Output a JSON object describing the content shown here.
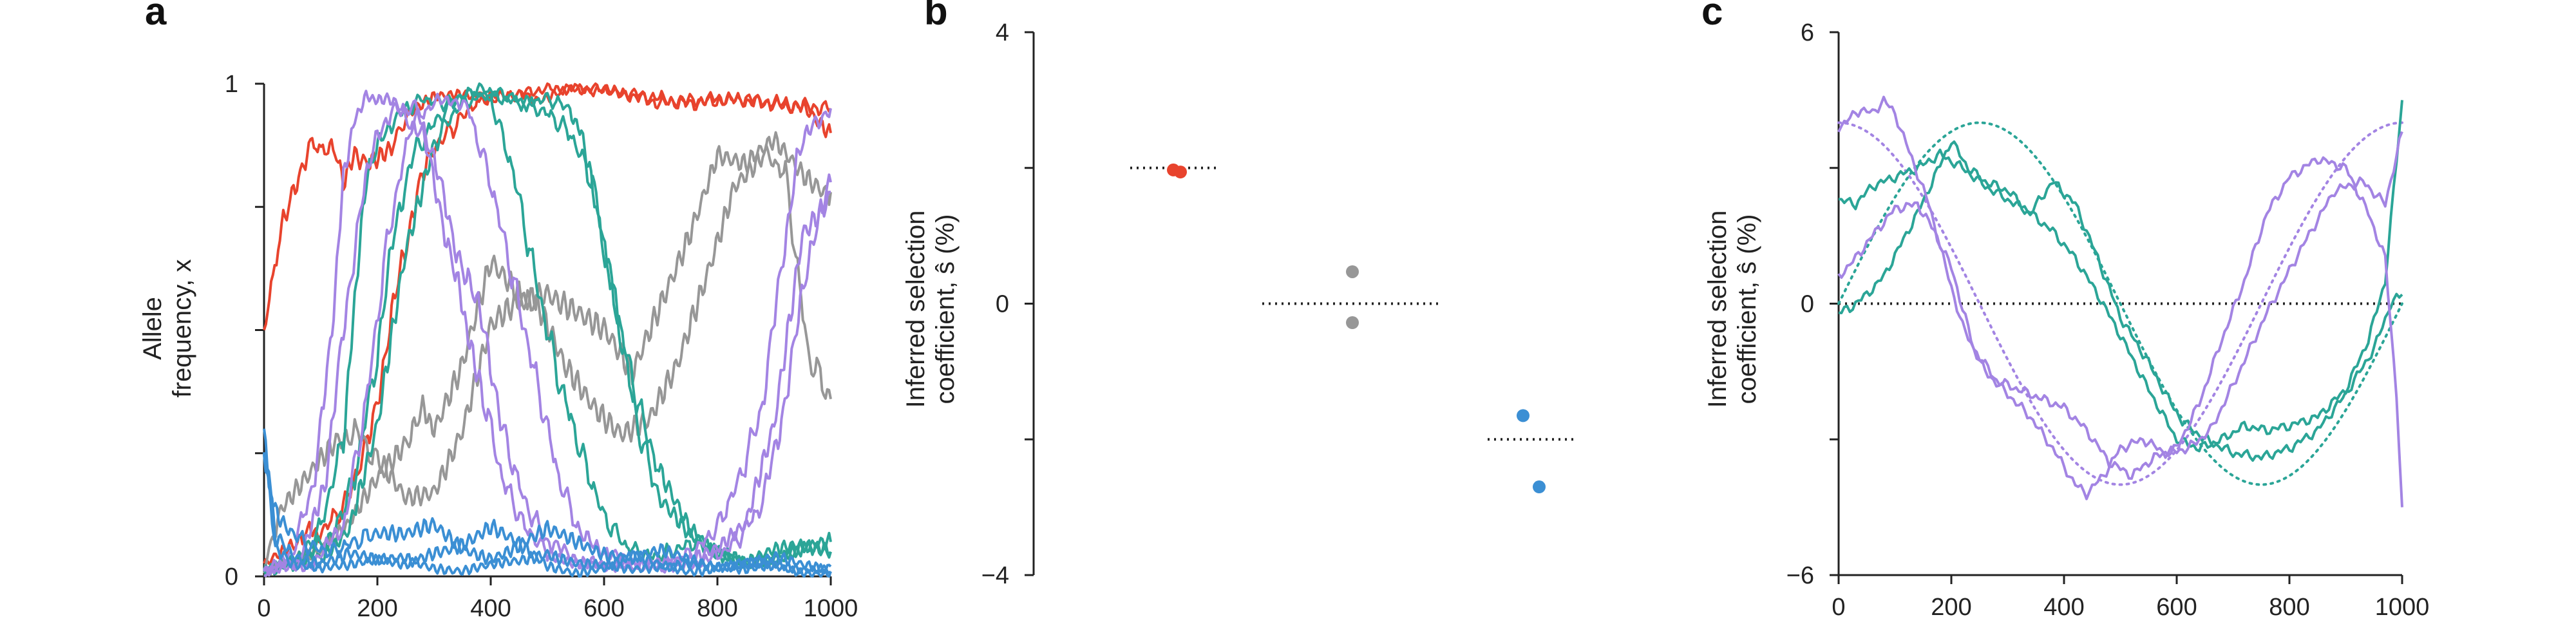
{
  "chart_data": [
    {
      "panel": "a",
      "type": "line",
      "title": "",
      "ylabel": [
        "Allele",
        "frequency, x"
      ],
      "xlabel": "",
      "xlim": [
        0,
        1000
      ],
      "ylim": [
        0,
        1
      ],
      "xticks": [
        "0",
        "200",
        "400",
        "600",
        "800",
        "1000"
      ],
      "yticks": [
        "0",
        "1"
      ],
      "series": [
        {
          "color": "#e8432d",
          "x": [
            0,
            25,
            55,
            85,
            110,
            125,
            140,
            160,
            190,
            225,
            250,
            300,
            350,
            400,
            500,
            600,
            700,
            800,
            900,
            1000
          ],
          "values": [
            0.5,
            0.67,
            0.8,
            0.88,
            0.86,
            0.87,
            0.81,
            0.86,
            0.84,
            0.87,
            0.93,
            0.97,
            0.98,
            0.97,
            0.99,
            0.99,
            0.96,
            0.97,
            0.96,
            0.95
          ]
        },
        {
          "color": "#e8432d",
          "x": [
            0,
            50,
            80,
            100,
            140,
            180,
            210,
            240,
            270,
            300,
            340,
            380,
            420,
            480,
            560,
            650,
            750,
            850,
            950,
            1000
          ],
          "values": [
            0.02,
            0.06,
            0.1,
            0.09,
            0.14,
            0.26,
            0.42,
            0.62,
            0.78,
            0.87,
            0.92,
            0.97,
            0.98,
            0.97,
            0.99,
            0.98,
            0.96,
            0.97,
            0.95,
            0.9
          ]
        },
        {
          "color": "#979797",
          "x": [
            0,
            30,
            80,
            130,
            160,
            200,
            250,
            300,
            350,
            400,
            450,
            500,
            550,
            600,
            650,
            700,
            750,
            800,
            850,
            900,
            950,
            1000
          ],
          "values": [
            0.02,
            0.14,
            0.2,
            0.27,
            0.3,
            0.23,
            0.16,
            0.18,
            0.3,
            0.5,
            0.55,
            0.58,
            0.55,
            0.5,
            0.4,
            0.55,
            0.7,
            0.86,
            0.83,
            0.88,
            0.82,
            0.78
          ]
        },
        {
          "color": "#979797",
          "x": [
            0,
            50,
            100,
            150,
            200,
            250,
            280,
            300,
            350,
            400,
            450,
            480,
            530,
            580,
            630,
            680,
            730,
            780,
            830,
            880,
            920,
            960,
            1000
          ],
          "values": [
            0.01,
            0.04,
            0.05,
            0.1,
            0.2,
            0.28,
            0.33,
            0.3,
            0.42,
            0.63,
            0.58,
            0.55,
            0.42,
            0.35,
            0.3,
            0.32,
            0.42,
            0.6,
            0.8,
            0.86,
            0.82,
            0.45,
            0.36
          ]
        },
        {
          "color": "#2ba597",
          "x": [
            0,
            60,
            100,
            140,
            160,
            180,
            210,
            240,
            280,
            320,
            360,
            400,
            440,
            480,
            520,
            560,
            600,
            640,
            680,
            720,
            760,
            800,
            850,
            900,
            950,
            1000
          ],
          "values": [
            0.01,
            0.03,
            0.1,
            0.28,
            0.55,
            0.8,
            0.9,
            0.94,
            0.97,
            0.96,
            0.98,
            0.97,
            0.82,
            0.6,
            0.4,
            0.25,
            0.12,
            0.06,
            0.04,
            0.05,
            0.07,
            0.05,
            0.03,
            0.04,
            0.06,
            0.05
          ]
        },
        {
          "color": "#2ba597",
          "x": [
            0,
            80,
            120,
            160,
            200,
            230,
            260,
            300,
            340,
            380,
            420,
            460,
            500,
            540,
            580,
            620,
            660,
            700,
            750,
            800,
            850,
            900,
            950,
            1000
          ],
          "values": [
            0.01,
            0.05,
            0.08,
            0.2,
            0.45,
            0.7,
            0.85,
            0.92,
            0.97,
            0.99,
            0.98,
            0.96,
            0.94,
            0.9,
            0.8,
            0.55,
            0.3,
            0.15,
            0.08,
            0.05,
            0.03,
            0.03,
            0.05,
            0.07
          ]
        },
        {
          "color": "#2ba597",
          "x": [
            0,
            100,
            150,
            200,
            250,
            300,
            340,
            380,
            420,
            460,
            500,
            540,
            560,
            580,
            620,
            660,
            700,
            750,
            800,
            850,
            900,
            950,
            1000
          ],
          "values": [
            0.01,
            0.04,
            0.1,
            0.3,
            0.65,
            0.88,
            0.95,
            0.98,
            0.97,
            0.96,
            0.97,
            0.95,
            0.9,
            0.78,
            0.55,
            0.35,
            0.2,
            0.1,
            0.05,
            0.03,
            0.05,
            0.06,
            0.05
          ]
        },
        {
          "color": "#a384e3",
          "x": [
            0,
            50,
            90,
            120,
            140,
            160,
            180,
            200,
            220,
            250,
            280,
            310,
            340,
            360,
            380,
            420,
            460,
            500,
            550,
            600,
            650,
            700,
            750,
            800,
            850,
            900,
            950,
            1000
          ],
          "values": [
            0.01,
            0.05,
            0.2,
            0.5,
            0.8,
            0.93,
            0.98,
            0.96,
            0.97,
            0.93,
            0.9,
            0.75,
            0.6,
            0.5,
            0.4,
            0.2,
            0.1,
            0.05,
            0.03,
            0.02,
            0.02,
            0.03,
            0.04,
            0.06,
            0.1,
            0.3,
            0.7,
            0.78
          ]
        },
        {
          "color": "#a384e3",
          "x": [
            0,
            60,
            110,
            140,
            170,
            200,
            230,
            270,
            300,
            330,
            360,
            390,
            420,
            460,
            500,
            560,
            620,
            680,
            720,
            760,
            800,
            840,
            880,
            910,
            940,
            970,
            1000
          ],
          "values": [
            0.01,
            0.03,
            0.2,
            0.5,
            0.75,
            0.9,
            0.95,
            0.95,
            0.85,
            0.7,
            0.6,
            0.5,
            0.3,
            0.15,
            0.07,
            0.03,
            0.02,
            0.02,
            0.03,
            0.05,
            0.1,
            0.2,
            0.35,
            0.6,
            0.85,
            0.92,
            0.95
          ]
        },
        {
          "color": "#a384e3",
          "x": [
            0,
            80,
            140,
            180,
            220,
            260,
            300,
            330,
            360,
            400,
            440,
            480,
            520,
            560,
            620,
            680,
            740,
            800,
            840,
            880,
            910,
            940,
            970,
            1000
          ],
          "values": [
            0.01,
            0.02,
            0.1,
            0.35,
            0.7,
            0.92,
            0.96,
            0.97,
            0.95,
            0.8,
            0.6,
            0.4,
            0.2,
            0.08,
            0.04,
            0.02,
            0.02,
            0.04,
            0.08,
            0.15,
            0.3,
            0.5,
            0.7,
            0.8
          ]
        },
        {
          "color": "#3b8fd4",
          "x": [
            0,
            20,
            40,
            80,
            120,
            160,
            200,
            250,
            300,
            350,
            400,
            450,
            500,
            550,
            600,
            650,
            700,
            750,
            800,
            850,
            900,
            950,
            1000
          ],
          "values": [
            0.25,
            0.14,
            0.1,
            0.06,
            0.05,
            0.07,
            0.09,
            0.08,
            0.1,
            0.06,
            0.04,
            0.06,
            0.09,
            0.07,
            0.05,
            0.04,
            0.05,
            0.03,
            0.02,
            0.03,
            0.04,
            0.02,
            0.01
          ]
        },
        {
          "color": "#3b8fd4",
          "x": [
            0,
            20,
            50,
            100,
            150,
            200,
            250,
            300,
            350,
            400,
            450,
            500,
            550,
            600,
            650,
            700,
            750,
            800,
            850,
            900,
            950,
            1000
          ],
          "values": [
            0.28,
            0.08,
            0.04,
            0.03,
            0.05,
            0.03,
            0.02,
            0.05,
            0.07,
            0.1,
            0.06,
            0.02,
            0.01,
            0.02,
            0.04,
            0.02,
            0.01,
            0.02,
            0.03,
            0.02,
            0.01,
            0.02
          ]
        },
        {
          "color": "#3b8fd4",
          "x": [
            0,
            20,
            50,
            100,
            150,
            200,
            250,
            300,
            350,
            400,
            450,
            500,
            550,
            600,
            650,
            700,
            750,
            800,
            850,
            900,
            950,
            1000
          ],
          "values": [
            0.26,
            0.05,
            0.03,
            0.02,
            0.02,
            0.03,
            0.04,
            0.02,
            0.01,
            0.02,
            0.03,
            0.05,
            0.03,
            0.02,
            0.01,
            0.02,
            0.03,
            0.02,
            0.01,
            0.02,
            0.01,
            0.01
          ]
        }
      ]
    },
    {
      "panel": "b",
      "type": "scatter",
      "title": "",
      "ylabel": [
        "Inferred selection",
        "coefficient, ŝ (%)"
      ],
      "ylim": [
        -4,
        4
      ],
      "yticks": [
        "4",
        "0",
        "−4"
      ],
      "true_values": [
        {
          "group": 1,
          "value": 2.0,
          "color": "#222222"
        },
        {
          "group": 2,
          "value": 0.0,
          "color": "#222222"
        },
        {
          "group": 3,
          "value": -2.0,
          "color": "#222222"
        }
      ],
      "points": [
        {
          "group": 1,
          "value": 1.97,
          "color": "#e8432d"
        },
        {
          "group": 1,
          "value": 1.94,
          "color": "#e8432d"
        },
        {
          "group": 2,
          "value": 0.47,
          "color": "#979797"
        },
        {
          "group": 2,
          "value": -0.28,
          "color": "#979797"
        },
        {
          "group": 3,
          "value": -1.65,
          "color": "#3b8fd4"
        },
        {
          "group": 3,
          "value": -2.7,
          "color": "#3b8fd4"
        }
      ]
    },
    {
      "panel": "c",
      "type": "line",
      "title": "",
      "ylabel": [
        "Inferred selection",
        "coefficient, ŝ (%)"
      ],
      "xlabel": "",
      "xlim": [
        0,
        1000
      ],
      "ylim": [
        -6,
        6
      ],
      "xticks": [
        "0",
        "200",
        "400",
        "600",
        "800",
        "1000"
      ],
      "yticks": [
        "6",
        "0",
        "−6"
      ],
      "zero_line": 0,
      "true_curves": [
        {
          "color": "#2ba597",
          "style": "dotted",
          "formula": "4*sin(2*pi*t/1000)",
          "amplitude": 4,
          "phase": "sin"
        },
        {
          "color": "#a384e3",
          "style": "dotted",
          "formula": "4*cos(2*pi*t/1000)",
          "amplitude": 4,
          "phase": "cos"
        }
      ],
      "series": [
        {
          "color": "#2ba597",
          "x": [
            0,
            20,
            50,
            80,
            110,
            140,
            170,
            200,
            230,
            260,
            300,
            340,
            380,
            420,
            460,
            500,
            550,
            600,
            640,
            680,
            720,
            760,
            800,
            850,
            900,
            940,
            970,
            1000
          ],
          "values": [
            -0.2,
            -0.1,
            0.2,
            0.6,
            1.3,
            2.0,
            2.8,
            3.6,
            3.0,
            2.7,
            2.5,
            2.0,
            1.6,
            1.0,
            0.2,
            -0.7,
            -1.9,
            -3.0,
            -3.2,
            -3.0,
            -2.7,
            -2.8,
            -2.7,
            -2.5,
            -1.9,
            -0.8,
            0.5,
            4.5
          ]
        },
        {
          "color": "#2ba597",
          "x": [
            0,
            30,
            60,
            100,
            140,
            180,
            220,
            260,
            300,
            340,
            380,
            420,
            460,
            500,
            550,
            580,
            610,
            650,
            700,
            750,
            800,
            850,
            900,
            950,
            980,
            1000
          ],
          "values": [
            2.3,
            2.2,
            2.6,
            2.8,
            3.0,
            3.3,
            3.0,
            2.6,
            2.3,
            2.0,
            2.7,
            2.2,
            1.0,
            -0.3,
            -1.3,
            -2.0,
            -2.6,
            -3.0,
            -3.3,
            -3.4,
            -3.2,
            -2.8,
            -2.0,
            -1.0,
            0.0,
            0.2
          ]
        },
        {
          "color": "#a384e3",
          "x": [
            0,
            20,
            40,
            60,
            80,
            100,
            130,
            160,
            190,
            220,
            260,
            300,
            340,
            380,
            420,
            440,
            470,
            500,
            540,
            580,
            620,
            660,
            700,
            760,
            820,
            880,
            930,
            970,
            1000
          ],
          "values": [
            3.9,
            4.1,
            4.3,
            4.2,
            4.5,
            4.2,
            3.2,
            2.2,
            0.8,
            -0.5,
            -1.5,
            -2.0,
            -2.5,
            -3.2,
            -4.0,
            -4.2,
            -3.8,
            -3.2,
            -3.0,
            -3.3,
            -3.2,
            -2.8,
            -1.8,
            -0.2,
            1.2,
            2.5,
            2.7,
            2.2,
            3.8
          ]
        },
        {
          "color": "#a384e3",
          "x": [
            0,
            30,
            60,
            100,
            140,
            170,
            200,
            240,
            280,
            320,
            360,
            400,
            440,
            480,
            520,
            560,
            600,
            640,
            680,
            720,
            760,
            800,
            850,
            900,
            940,
            970,
            990,
            1000
          ],
          "values": [
            0.6,
            1.0,
            1.5,
            2.1,
            2.2,
            1.6,
            0.8,
            -1.0,
            -1.7,
            -1.9,
            -2.1,
            -2.3,
            -2.8,
            -3.5,
            -3.8,
            -3.4,
            -3.2,
            -2.2,
            -0.8,
            0.5,
            2.0,
            2.8,
            3.2,
            3.0,
            2.0,
            1.0,
            -2.0,
            -4.5
          ]
        }
      ]
    }
  ]
}
